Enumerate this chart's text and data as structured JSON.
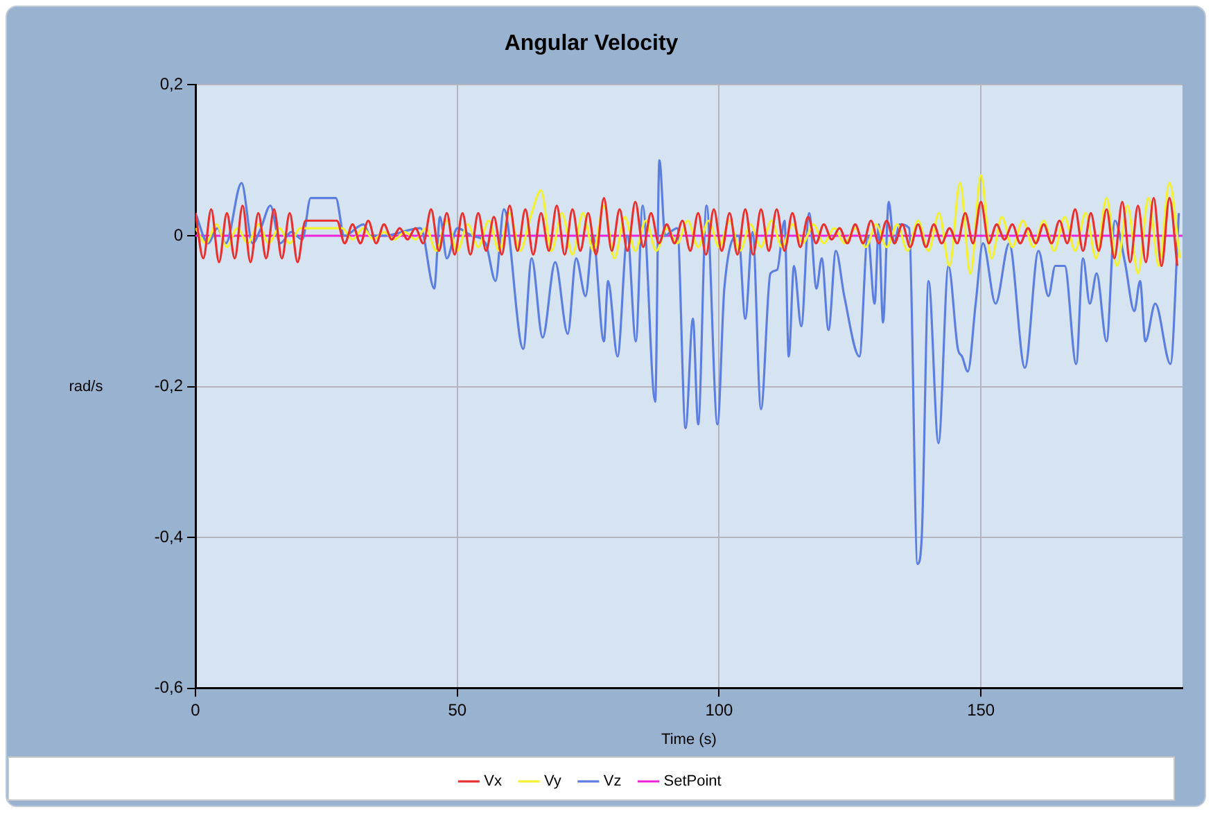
{
  "chart_data": {
    "type": "line",
    "title": "Angular Velocity",
    "xlabel": "Time (s)",
    "ylabel": "rad/s",
    "xlim": [
      0,
      188.5
    ],
    "xticks": [
      0,
      50,
      100,
      150
    ],
    "ylim": [
      -0.6,
      0.2
    ],
    "yticks": [
      {
        "value": -0.6,
        "label": "-0,6"
      },
      {
        "value": -0.4,
        "label": "-0,4"
      },
      {
        "value": -0.2,
        "label": "-0,2"
      },
      0,
      {
        "value": 0.2,
        "label": "0,2"
      }
    ],
    "grid": true,
    "legend": "bottom",
    "marker": "none",
    "line_style": "solid",
    "series": [
      {
        "name": "Vx",
        "color": "#e8302f",
        "x": [
          0,
          1.5,
          3,
          4.5,
          6,
          7.5,
          9,
          10.5,
          12,
          13.5,
          15,
          16.5,
          18,
          19.5,
          21,
          22.5,
          24,
          25.5,
          27,
          28.5,
          30,
          31.5,
          33,
          34.5,
          36,
          37.5,
          39,
          40.5,
          42,
          43.5,
          45,
          46.5,
          48,
          49.5,
          51,
          52.5,
          54,
          55.5,
          57,
          58.5,
          60,
          61.5,
          63,
          64.5,
          66,
          67.5,
          69,
          70.5,
          72,
          73.5,
          75,
          76.5,
          78,
          79.5,
          81,
          82.5,
          84,
          85.5,
          87,
          88.5,
          90,
          91.5,
          93,
          94.5,
          96,
          97.5,
          99,
          100.5,
          102,
          103.5,
          105,
          106.5,
          108,
          109.5,
          111,
          112.5,
          114,
          115.5,
          117,
          118.5,
          120,
          121.5,
          123,
          124.5,
          126,
          127.5,
          129,
          130.5,
          132,
          133.5,
          135,
          136.5,
          138,
          139.5,
          141,
          142.5,
          144,
          145.5,
          147,
          148.5,
          150,
          151.5,
          153,
          154.5,
          156,
          157.5,
          159,
          160.5,
          162,
          163.5,
          165,
          166.5,
          168,
          169.5,
          171,
          172.5,
          174,
          175.5,
          177,
          178.5,
          180,
          181.5,
          183,
          184.5,
          186,
          187.5
        ],
        "values": [
          0.03,
          -0.03,
          0.035,
          -0.035,
          0.03,
          -0.03,
          0.04,
          -0.035,
          0.03,
          -0.03,
          0.035,
          -0.03,
          0.03,
          -0.035,
          0.02,
          0.02,
          0.02,
          0.02,
          0.02,
          -0.01,
          0.015,
          -0.01,
          0.02,
          -0.01,
          0.015,
          -0.005,
          0.01,
          -0.005,
          0.01,
          -0.01,
          0.035,
          -0.02,
          0.03,
          -0.025,
          0.03,
          -0.025,
          0.03,
          -0.02,
          0.025,
          -0.025,
          0.04,
          -0.02,
          0.035,
          -0.025,
          0.03,
          -0.02,
          0.04,
          -0.025,
          0.035,
          -0.02,
          0.03,
          -0.025,
          0.05,
          -0.02,
          0.035,
          -0.02,
          0.045,
          -0.015,
          0.03,
          -0.01,
          0.015,
          -0.01,
          0.02,
          -0.02,
          0.03,
          -0.025,
          0.035,
          -0.02,
          0.03,
          -0.025,
          0.035,
          -0.025,
          0.035,
          -0.02,
          0.035,
          -0.02,
          0.03,
          -0.015,
          0.025,
          -0.01,
          0.015,
          -0.005,
          0.01,
          -0.01,
          0.015,
          -0.01,
          0.02,
          -0.01,
          0.02,
          -0.01,
          0.015,
          -0.015,
          0.015,
          -0.015,
          0.015,
          -0.01,
          0.01,
          -0.01,
          0.03,
          -0.01,
          0.045,
          -0.01,
          0.015,
          -0.005,
          0.015,
          -0.01,
          0.01,
          -0.01,
          0.015,
          -0.01,
          0.02,
          -0.01,
          0.035,
          -0.02,
          0.03,
          -0.02,
          0.035,
          -0.03,
          0.045,
          -0.035,
          0.04,
          -0.035,
          0.05,
          -0.04,
          0.05,
          -0.04
        ]
      },
      {
        "name": "Vy",
        "color": "#f2f230",
        "x": [
          0,
          2,
          4,
          6,
          8,
          10,
          12,
          14,
          16,
          18,
          20,
          22,
          24,
          26,
          28,
          30,
          32,
          34,
          36,
          38,
          40,
          42,
          44,
          46,
          48,
          50,
          52,
          54,
          56,
          58,
          60,
          62,
          64,
          66,
          68,
          70,
          72,
          74,
          76,
          78,
          80,
          82,
          84,
          86,
          88,
          90,
          92,
          94,
          96,
          98,
          100,
          102,
          104,
          106,
          108,
          110,
          112,
          114,
          116,
          118,
          120,
          122,
          124,
          126,
          128,
          130,
          132,
          134,
          136,
          138,
          140,
          142,
          144,
          146,
          148,
          150,
          152,
          154,
          156,
          158,
          160,
          162,
          164,
          166,
          168,
          170,
          172,
          174,
          176,
          178,
          180,
          182,
          184,
          186,
          188
        ],
        "values": [
          0.01,
          -0.01,
          0.015,
          -0.015,
          0.01,
          -0.01,
          0.015,
          -0.01,
          0.01,
          -0.01,
          0.01,
          0.01,
          0.01,
          0.01,
          0.01,
          -0.005,
          0.01,
          -0.005,
          0.005,
          -0.005,
          0.005,
          -0.005,
          0.01,
          -0.02,
          0.02,
          -0.02,
          0.015,
          -0.015,
          0.02,
          -0.02,
          0.03,
          -0.02,
          0.025,
          0.06,
          -0.02,
          0.03,
          -0.025,
          0.03,
          -0.02,
          0.04,
          -0.03,
          0.025,
          -0.02,
          0.02,
          -0.02,
          0.01,
          -0.01,
          0.02,
          -0.015,
          0.02,
          -0.015,
          0.02,
          -0.02,
          0.015,
          -0.015,
          0.02,
          -0.015,
          0.015,
          -0.01,
          0.015,
          -0.01,
          0.01,
          -0.01,
          0.01,
          -0.015,
          0.015,
          -0.015,
          0.015,
          -0.02,
          0.02,
          -0.02,
          0.03,
          -0.04,
          0.07,
          -0.05,
          0.08,
          -0.03,
          0.025,
          -0.015,
          0.02,
          -0.015,
          0.02,
          -0.02,
          0.025,
          -0.02,
          0.03,
          -0.03,
          0.05,
          -0.04,
          0.04,
          -0.05,
          0.05,
          -0.04,
          0.07,
          -0.03
        ]
      },
      {
        "name": "Vz",
        "color": "#5b7ee0",
        "x": [
          0,
          2.4,
          4.2,
          5.8,
          8.8,
          10.9,
          12.5,
          14.3,
          16.2,
          18.3,
          20.4,
          22,
          26.8,
          28.4,
          32.1,
          33.4,
          36,
          43,
          45.6,
          46.7,
          48,
          50,
          52.8,
          55.4,
          57.3,
          58.9,
          62.6,
          64.2,
          66.3,
          68.7,
          71.1,
          72.7,
          74.5,
          75.9,
          78,
          78.8,
          80.6,
          82.5,
          84.1,
          85.4,
          87.8,
          88.6,
          89.7,
          90.7,
          92,
          93.6,
          95,
          96,
          97.6,
          99.7,
          101,
          103.7,
          105,
          106.4,
          108,
          109.8,
          111.1,
          112.5,
          113.3,
          114.3,
          115.7,
          117.2,
          118.6,
          119.6,
          120.9,
          122.3,
          123.9,
          126.8,
          128.4,
          129.7,
          130.5,
          131.3,
          132.4,
          133.4,
          134.5,
          136.3,
          137.9,
          138.7,
          140,
          141.9,
          143.8,
          145.6,
          146.4,
          147.5,
          149,
          150.4,
          152.8,
          155.4,
          158.4,
          161,
          162.9,
          164.2,
          166,
          168.2,
          169.5,
          170.8,
          172.1,
          174,
          175.6,
          177.5,
          179.3,
          180.4,
          181.4,
          183.3,
          186.2,
          187.8
        ],
        "values": [
          0.03,
          -0.01,
          0.01,
          -0.01,
          0.07,
          -0.01,
          0.01,
          0.04,
          -0.01,
          0.005,
          -0.005,
          0.05,
          0.05,
          0,
          0.015,
          0,
          0,
          0.01,
          -0.07,
          0.025,
          -0.03,
          0.01,
          0,
          -0.01,
          -0.06,
          0.035,
          -0.15,
          -0.03,
          -0.135,
          -0.035,
          -0.13,
          -0.03,
          -0.08,
          0,
          -0.14,
          -0.06,
          -0.16,
          0,
          -0.14,
          0.04,
          -0.22,
          0.1,
          0,
          0.005,
          0.01,
          -0.255,
          -0.11,
          -0.25,
          0.04,
          -0.25,
          -0.07,
          0,
          -0.11,
          0.005,
          -0.23,
          -0.05,
          -0.045,
          0.02,
          -0.16,
          -0.04,
          -0.12,
          0.03,
          -0.07,
          -0.03,
          -0.125,
          -0.02,
          -0.08,
          -0.16,
          0,
          -0.09,
          0.015,
          -0.115,
          0.045,
          -0.01,
          0.015,
          0.01,
          -0.435,
          -0.4,
          -0.06,
          -0.275,
          -0.04,
          -0.15,
          -0.16,
          -0.18,
          -0.09,
          -0.01,
          -0.09,
          -0.01,
          -0.175,
          -0.02,
          -0.08,
          -0.04,
          -0.04,
          -0.17,
          -0.03,
          -0.09,
          -0.05,
          -0.14,
          0.02,
          -0.035,
          -0.1,
          -0.06,
          -0.14,
          -0.09,
          -0.17,
          0.03
        ]
      },
      {
        "name": "SetPoint",
        "color": "#ee22d8",
        "x": [
          0,
          188.5
        ],
        "values": [
          0,
          0
        ]
      }
    ]
  }
}
